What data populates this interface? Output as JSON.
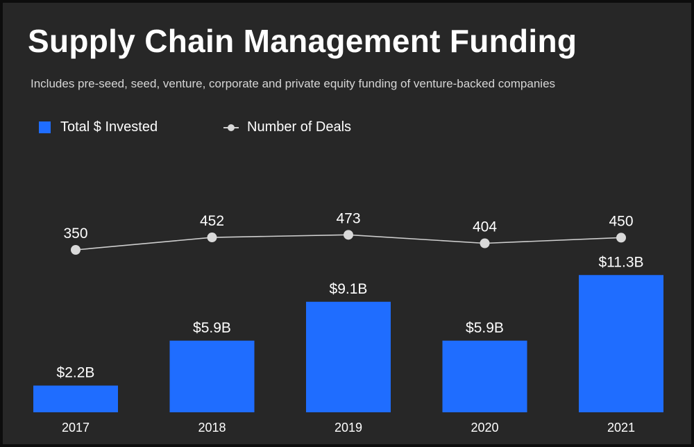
{
  "chart_data": {
    "type": "bar",
    "title": "Supply Chain Management Funding",
    "subtitle": "Includes pre-seed, seed, venture, corporate and private equity funding of venture-backed companies",
    "categories": [
      "2017",
      "2018",
      "2019",
      "2020",
      "2021"
    ],
    "series": [
      {
        "name": "Total $ Invested",
        "type": "bar",
        "values": [
          2.2,
          5.9,
          9.1,
          5.9,
          11.3
        ],
        "labels": [
          "$2.2B",
          "$5.9B",
          "$9.1B",
          "$5.9B",
          "$11.3B"
        ],
        "unit": "$B",
        "color": "#1f6dff"
      },
      {
        "name": "Number of Deals",
        "type": "line",
        "values": [
          350,
          452,
          473,
          404,
          450
        ],
        "labels": [
          "350",
          "452",
          "473",
          "404",
          "450"
        ],
        "color": "#d9d9d9"
      }
    ],
    "legend_position": "top-left",
    "grid": false,
    "background": "#272727"
  }
}
